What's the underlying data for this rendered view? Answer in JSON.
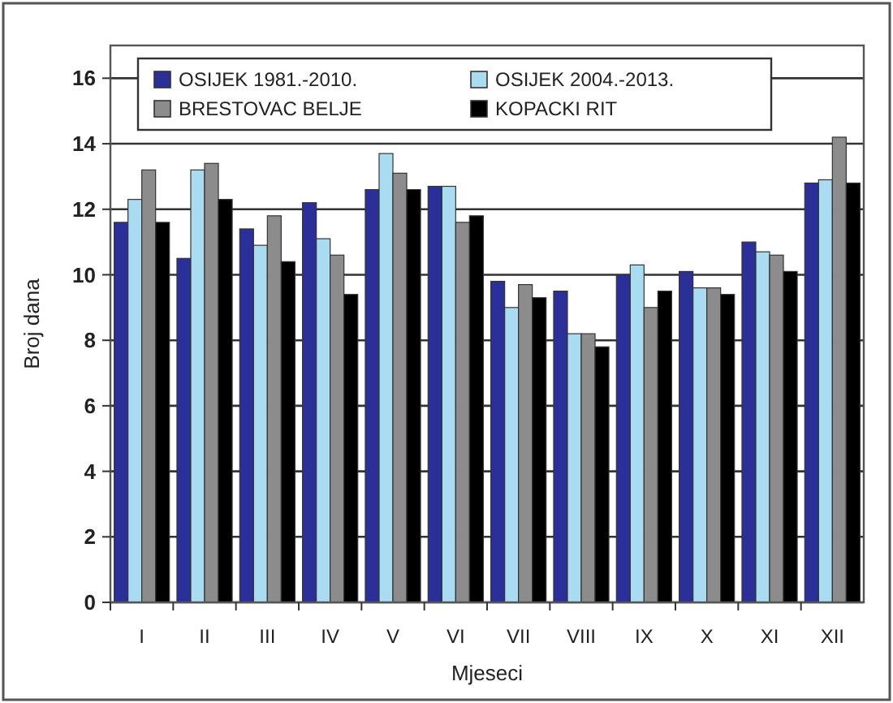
{
  "chart_data": {
    "type": "bar",
    "xlabel": "Mjeseci",
    "ylabel": "Broj dana",
    "categories": [
      "I",
      "II",
      "III",
      "IV",
      "V",
      "VI",
      "VII",
      "VIII",
      "IX",
      "X",
      "XI",
      "XII"
    ],
    "series": [
      {
        "name": "OSIJEK 1981.-2010.",
        "color": "#2b2f9a",
        "values": [
          11.6,
          10.5,
          11.4,
          12.2,
          12.6,
          12.7,
          9.8,
          9.5,
          10.0,
          10.1,
          11.0,
          12.8
        ]
      },
      {
        "name": "OSIJEK 2004.-2013.",
        "color": "#a9dcf0",
        "values": [
          12.3,
          13.2,
          10.9,
          11.1,
          13.7,
          12.7,
          9.0,
          8.2,
          10.3,
          9.6,
          10.7,
          12.9
        ]
      },
      {
        "name": "BRESTOVAC BELJE",
        "color": "#8c8c8c",
        "values": [
          13.2,
          13.4,
          11.8,
          10.6,
          13.1,
          11.6,
          9.7,
          8.2,
          9.0,
          9.6,
          10.6,
          14.2
        ]
      },
      {
        "name": "KOPACKI RIT",
        "color": "#000000",
        "values": [
          11.6,
          12.3,
          10.4,
          9.4,
          12.6,
          11.8,
          9.3,
          7.8,
          9.5,
          9.4,
          10.1,
          12.8
        ]
      }
    ],
    "ylim": [
      0,
      17
    ],
    "yticks": [
      0,
      2,
      4,
      6,
      8,
      10,
      12,
      14,
      16
    ],
    "grid": "y",
    "legend": "top"
  }
}
